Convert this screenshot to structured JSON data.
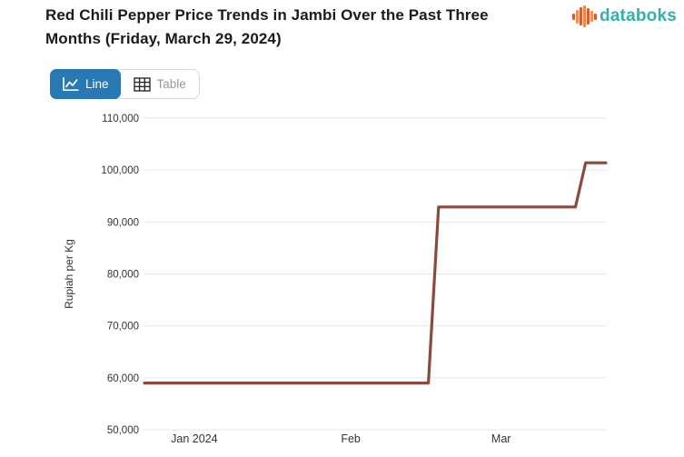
{
  "header": {
    "title": "Red Chili Pepper Price Trends in Jambi Over the Past Three Months (Friday, March 29, 2024)"
  },
  "brand": {
    "name": "databoks",
    "icon": "pulse-bars-icon",
    "text_color": "#2eb3aa",
    "bar_colors": [
      "#dd5748",
      "#f0923e",
      "#dd5748",
      "#ef8a3d",
      "#dd5748",
      "#f0923e",
      "#dd5748"
    ]
  },
  "toolbar": {
    "line_label": "Line",
    "table_label": "Table",
    "active_tab": "Line",
    "active_color": "#2878b4",
    "inactive_text_color": "#979797"
  },
  "chart_data": {
    "type": "line",
    "title": "Red Chili Pepper Price Trends in Jambi Over the Past Three Months (Friday, March 29, 2024)",
    "xlabel": "",
    "ylabel": "Rupiah per Kg",
    "line_color": "#8a4a3c",
    "grid": true,
    "legend_position": "none",
    "x_range": [
      "2023-12-29",
      "2024-03-29"
    ],
    "ylim": [
      50000,
      110000
    ],
    "y_ticks": [
      {
        "value": 50000,
        "label": "50,000"
      },
      {
        "value": 60000,
        "label": "60,000"
      },
      {
        "value": 70000,
        "label": "70,000"
      },
      {
        "value": 80000,
        "label": "80,000"
      },
      {
        "value": 90000,
        "label": "90,000"
      },
      {
        "value": 100000,
        "label": "100,000"
      },
      {
        "value": 110000,
        "label": "110,000"
      }
    ],
    "x_ticks": [
      {
        "pos": 0.108,
        "label": "Jan 2024"
      },
      {
        "pos": 0.447,
        "label": "Feb"
      },
      {
        "pos": 0.773,
        "label": "Mar"
      }
    ],
    "series": [
      {
        "name": "Red chili pepper price",
        "points": [
          {
            "date": "2023-12-29",
            "value": 59000
          },
          {
            "date": "2024-02-23",
            "value": 59000
          },
          {
            "date": "2024-02-25",
            "value": 92900
          },
          {
            "date": "2024-03-23",
            "value": 92900
          },
          {
            "date": "2024-03-25",
            "value": 101400
          },
          {
            "date": "2024-03-29",
            "value": 101400
          }
        ]
      }
    ]
  }
}
